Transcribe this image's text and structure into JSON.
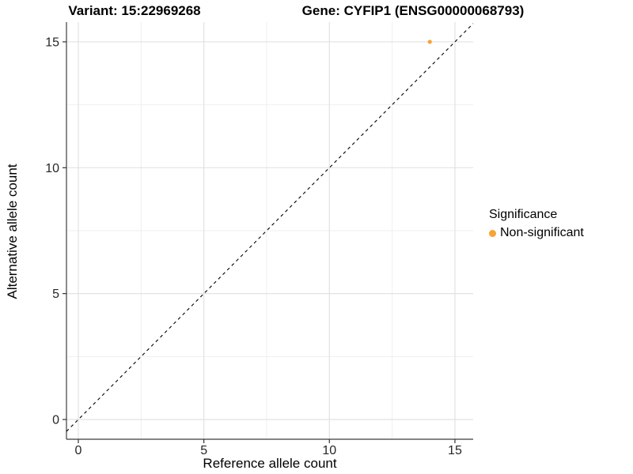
{
  "titles": {
    "variant": "Variant: 15:22969268",
    "gene": "Gene: CYFIP1 (ENSG00000068793)"
  },
  "chart_data": {
    "type": "scatter",
    "xlabel": "Reference allele count",
    "ylabel": "Alternative allele count",
    "x_ticks": [
      0,
      5,
      10,
      15
    ],
    "y_ticks": [
      0,
      5,
      10,
      15
    ],
    "xlim": [
      -0.5,
      15.7
    ],
    "ylim": [
      -0.8,
      15.8
    ],
    "grid": "major and minor, light gray on white panel",
    "points": [
      {
        "x": 14,
        "y": 15,
        "series": "Non-significant"
      }
    ],
    "abline": {
      "slope": 1,
      "intercept": 0,
      "style": "dashed",
      "note": "y = x identity reference line"
    },
    "legend": {
      "title": "Significance",
      "position": "right",
      "entries": [
        {
          "label": "Non-significant",
          "color": "#F8A332"
        }
      ]
    }
  },
  "colors": {
    "point": "#F8A332",
    "grid_major": "#E2E2E2",
    "grid_minor": "#EFEFEF",
    "axis_line": "#3C3C3C",
    "tick_mark": "#333333",
    "dashed_line": "#000000",
    "text": "#000000",
    "background": "#FFFFFF"
  }
}
